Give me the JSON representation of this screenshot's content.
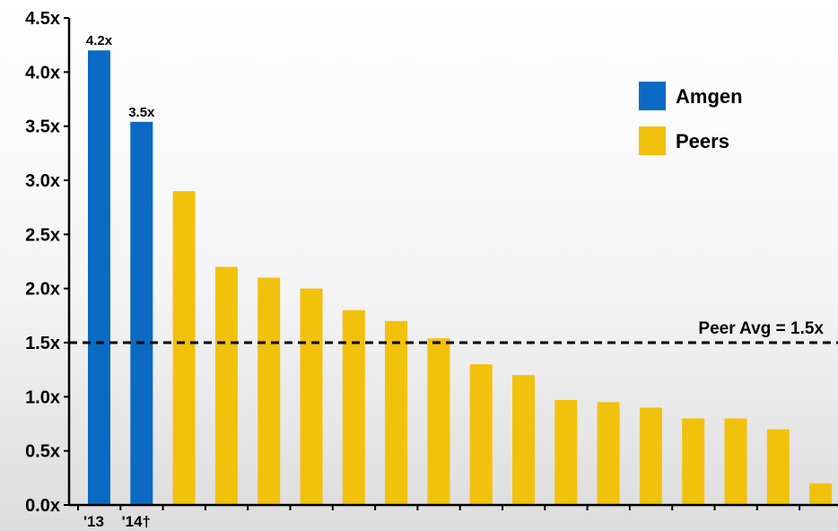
{
  "chart_data": {
    "type": "bar",
    "categories": [
      "'13",
      "'14†",
      "",
      "",
      "",
      "",
      "",
      "",
      "",
      "",
      "",
      "",
      "",
      "",
      "",
      "",
      "",
      ""
    ],
    "values": [
      4.2,
      3.54,
      2.9,
      2.2,
      2.1,
      2.0,
      1.8,
      1.7,
      1.54,
      1.3,
      1.2,
      0.97,
      0.95,
      0.9,
      0.8,
      0.8,
      0.7,
      0.2
    ],
    "groups": [
      "Amgen",
      "Amgen",
      "Peers",
      "Peers",
      "Peers",
      "Peers",
      "Peers",
      "Peers",
      "Peers",
      "Peers",
      "Peers",
      "Peers",
      "Peers",
      "Peers",
      "Peers",
      "Peers",
      "Peers",
      "Peers"
    ],
    "data_labels": [
      "4.2x",
      "3.5x",
      "",
      "",
      "",
      "",
      "",
      "",
      "",
      "",
      "",
      "",
      "",
      "",
      "",
      "",
      "",
      ""
    ],
    "y_ticks": [
      "0.0x",
      "0.5x",
      "1.0x",
      "1.5x",
      "2.0x",
      "2.5x",
      "3.0x",
      "3.5x",
      "4.0x",
      "4.5x"
    ],
    "ylim": [
      0,
      4.5
    ],
    "legend": [
      {
        "name": "Amgen",
        "color": "#0a6ac4"
      },
      {
        "name": "Peers",
        "color": "#f2c10c"
      }
    ],
    "legend_position": "top-right",
    "reference_line": {
      "value": 1.5,
      "label": "Peer Avg = 1.5x",
      "style": "dashed"
    },
    "grid": false,
    "title": "",
    "xlabel": "",
    "ylabel": ""
  }
}
